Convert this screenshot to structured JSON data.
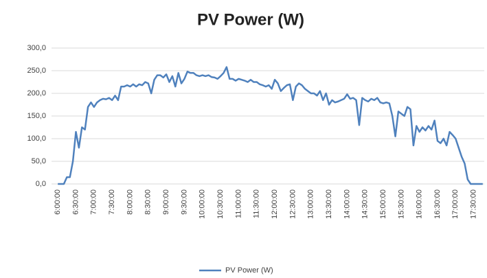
{
  "chart_data": {
    "type": "line",
    "title": "PV Power (W)",
    "categories": [
      "6:00:00",
      null,
      null,
      null,
      null,
      null,
      "6:30:00",
      null,
      null,
      null,
      null,
      null,
      "7:00:00",
      null,
      null,
      null,
      null,
      null,
      "7:30:00",
      null,
      null,
      null,
      null,
      null,
      "8:00:00",
      null,
      null,
      null,
      null,
      null,
      "8:30:00",
      null,
      null,
      null,
      null,
      null,
      "9:00:00",
      null,
      null,
      null,
      null,
      null,
      "9:30:00",
      null,
      null,
      null,
      null,
      null,
      "10:00:00",
      null,
      null,
      null,
      null,
      null,
      "10:30:00",
      null,
      null,
      null,
      null,
      null,
      "11:00:00",
      null,
      null,
      null,
      null,
      null,
      "11:30:00",
      null,
      null,
      null,
      null,
      null,
      "12:00:00",
      null,
      null,
      null,
      null,
      null,
      "12:30:00",
      null,
      null,
      null,
      null,
      null,
      "13:00:00",
      null,
      null,
      null,
      null,
      null,
      "13:30:00",
      null,
      null,
      null,
      null,
      null,
      "14:00:00",
      null,
      null,
      null,
      null,
      null,
      "14:30:00",
      null,
      null,
      null,
      null,
      null,
      "15:00:00",
      null,
      null,
      null,
      null,
      null,
      "15:30:00",
      null,
      null,
      null,
      null,
      null,
      "16:00:00",
      null,
      null,
      null,
      null,
      null,
      "16:30:00",
      null,
      null,
      null,
      null,
      null,
      "17:00:00",
      null,
      null,
      null,
      null,
      null,
      "17:30:00",
      null,
      null,
      null
    ],
    "series": [
      {
        "name": "PV Power (W)",
        "color": "#4f81bd",
        "values": [
          0,
          0,
          0,
          15,
          15,
          50,
          115,
          80,
          125,
          120,
          170,
          180,
          170,
          180,
          185,
          188,
          187,
          190,
          185,
          195,
          185,
          215,
          215,
          218,
          215,
          220,
          215,
          220,
          218,
          225,
          222,
          200,
          230,
          240,
          240,
          235,
          242,
          225,
          238,
          215,
          245,
          222,
          232,
          248,
          245,
          245,
          240,
          238,
          240,
          238,
          240,
          236,
          235,
          232,
          238,
          245,
          258,
          232,
          232,
          228,
          232,
          230,
          228,
          225,
          230,
          225,
          225,
          220,
          218,
          215,
          218,
          210,
          230,
          222,
          205,
          212,
          218,
          220,
          185,
          215,
          222,
          218,
          210,
          205,
          200,
          200,
          195,
          205,
          185,
          200,
          175,
          185,
          180,
          182,
          185,
          188,
          198,
          188,
          190,
          185,
          130,
          190,
          185,
          182,
          188,
          185,
          190,
          180,
          178,
          180,
          178,
          150,
          105,
          160,
          155,
          150,
          170,
          165,
          85,
          128,
          115,
          125,
          118,
          128,
          120,
          140,
          95,
          90,
          100,
          85,
          115,
          108,
          100,
          80,
          60,
          45,
          10,
          0,
          0,
          0,
          0,
          0
        ]
      }
    ],
    "ylim": [
      0,
      300
    ],
    "yticks": [
      {
        "value": 0,
        "label": "0,0"
      },
      {
        "value": 50,
        "label": "50,0"
      },
      {
        "value": 100,
        "label": "100,0"
      },
      {
        "value": 150,
        "label": "150,0"
      },
      {
        "value": 200,
        "label": "200,0"
      },
      {
        "value": 250,
        "label": "250,0"
      },
      {
        "value": 300,
        "label": "300,0"
      }
    ],
    "grid": true,
    "legend": "bottom"
  }
}
